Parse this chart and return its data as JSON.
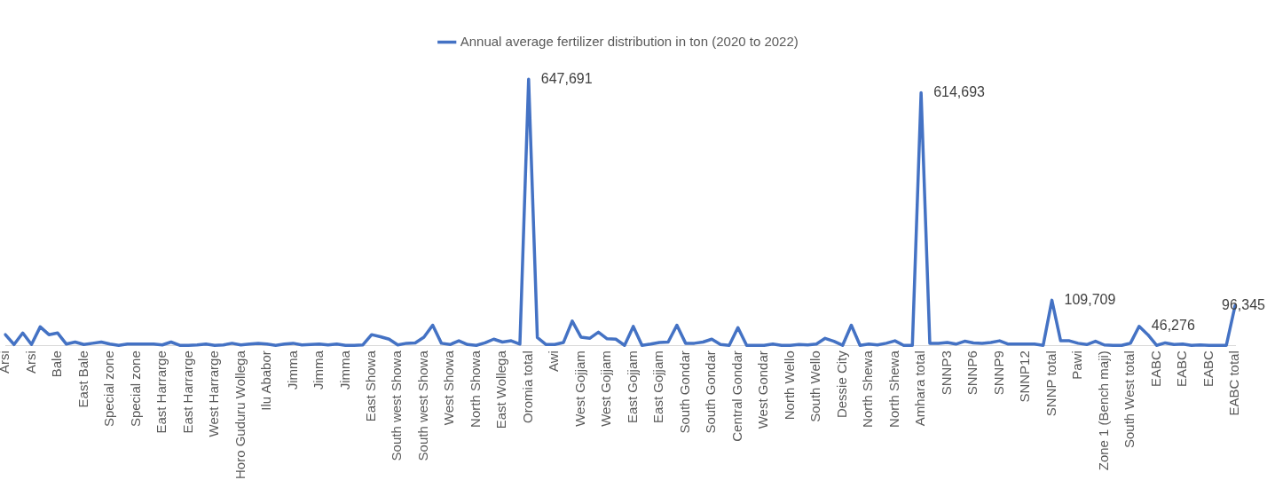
{
  "chart_data": {
    "type": "line",
    "tick_labels": "x",
    "legend": "top",
    "marker": "none",
    "grid": false,
    "categories": [
      "Arsi",
      null,
      null,
      "Arsi",
      null,
      null,
      "Bale",
      null,
      null,
      "East Bale",
      null,
      null,
      "Special zone",
      null,
      null,
      "Special zone",
      null,
      null,
      "East Harrarge",
      null,
      null,
      "East Harrarge",
      null,
      null,
      "West Harrarge",
      null,
      null,
      "Horo Guduru Wollega",
      null,
      null,
      "Ilu Ababor",
      null,
      null,
      "Jimma",
      null,
      null,
      "Jimma",
      null,
      null,
      "Jimma",
      null,
      null,
      "East Showa",
      null,
      null,
      "South west Showa",
      null,
      null,
      "South west Showa",
      null,
      null,
      "West Showa",
      null,
      null,
      "North Showa",
      null,
      null,
      "East Wollega",
      null,
      null,
      "Oromia total",
      null,
      null,
      "Awi",
      null,
      null,
      "West Gojjam",
      null,
      null,
      "West Gojjam",
      null,
      null,
      "East Gojjam",
      null,
      null,
      "East Gojjam",
      null,
      null,
      "South Gondar",
      null,
      null,
      "South Gondar",
      null,
      null,
      "Central Gondar",
      null,
      null,
      "West Gondar",
      null,
      null,
      "North Wello",
      null,
      null,
      "South Wello",
      null,
      null,
      "Dessie City",
      null,
      null,
      "North Shewa",
      null,
      null,
      "North Shewa",
      null,
      null,
      "Amhara total",
      null,
      null,
      "SNNP3",
      null,
      null,
      "SNNP6",
      null,
      null,
      "SNNP9",
      null,
      null,
      "SNNP12",
      null,
      null,
      "SNNP total",
      null,
      null,
      "Pawi",
      null,
      null,
      "Zone 1 (Bench maji)",
      null,
      null,
      "South West total",
      null,
      null,
      "EABC",
      null,
      null,
      "EABC",
      null,
      null,
      "EABC",
      null,
      null,
      "EABC total"
    ],
    "series": [
      {
        "name": "Annual average fertilizer distribution in ton (2020 to 2022)",
        "color": "#4472c4",
        "values": [
          26000,
          2000,
          30000,
          2000,
          45000,
          26000,
          30000,
          3000,
          8000,
          2000,
          5000,
          8000,
          3000,
          0,
          3000,
          3000,
          3000,
          3000,
          1000,
          8000,
          0,
          0,
          1000,
          3000,
          0,
          1000,
          5000,
          1000,
          3000,
          5000,
          3000,
          0,
          3000,
          5000,
          1000,
          2000,
          3000,
          1000,
          3000,
          0,
          0,
          1000,
          26000,
          21000,
          15000,
          1000,
          5000,
          6000,
          20000,
          49000,
          5000,
          2000,
          11000,
          2000,
          0,
          6000,
          15000,
          8000,
          11000,
          3000,
          647691,
          19000,
          2000,
          2000,
          7000,
          59000,
          20000,
          17000,
          32000,
          16000,
          15000,
          0,
          46000,
          0,
          3000,
          7000,
          8000,
          49000,
          5000,
          5000,
          8000,
          15000,
          2000,
          0,
          43000,
          0,
          0,
          0,
          3000,
          0,
          0,
          2000,
          1000,
          3000,
          17000,
          10000,
          0,
          49000,
          0,
          3000,
          1000,
          5000,
          11000,
          0,
          0,
          614693,
          5000,
          5000,
          7000,
          3000,
          10000,
          6000,
          5000,
          7000,
          11000,
          3000,
          3000,
          3000,
          3000,
          0,
          109709,
          11000,
          11000,
          5000,
          2000,
          10000,
          1000,
          0,
          0,
          5000,
          46276,
          26000,
          0,
          6000,
          2000,
          3000,
          0,
          1000,
          0,
          0,
          0,
          96345
        ],
        "value_labels": [
          null,
          null,
          null,
          null,
          null,
          null,
          null,
          null,
          null,
          null,
          null,
          null,
          null,
          null,
          null,
          null,
          null,
          null,
          null,
          null,
          null,
          null,
          null,
          null,
          null,
          null,
          null,
          null,
          null,
          null,
          null,
          null,
          null,
          null,
          null,
          null,
          null,
          null,
          null,
          null,
          null,
          null,
          null,
          null,
          null,
          null,
          null,
          null,
          null,
          null,
          null,
          null,
          null,
          null,
          null,
          null,
          null,
          null,
          null,
          null,
          "647,691",
          null,
          null,
          null,
          null,
          null,
          null,
          null,
          null,
          null,
          null,
          null,
          null,
          null,
          null,
          null,
          null,
          null,
          null,
          null,
          null,
          null,
          null,
          null,
          null,
          null,
          null,
          null,
          null,
          null,
          null,
          null,
          null,
          null,
          null,
          null,
          null,
          null,
          null,
          null,
          null,
          null,
          null,
          null,
          null,
          "614,693",
          null,
          null,
          null,
          null,
          null,
          null,
          null,
          null,
          null,
          null,
          null,
          null,
          null,
          null,
          "109,709",
          null,
          null,
          null,
          null,
          null,
          null,
          null,
          null,
          null,
          "46,276",
          null,
          null,
          null,
          null,
          null,
          null,
          null,
          null,
          null,
          null,
          "96,345"
        ]
      }
    ]
  }
}
